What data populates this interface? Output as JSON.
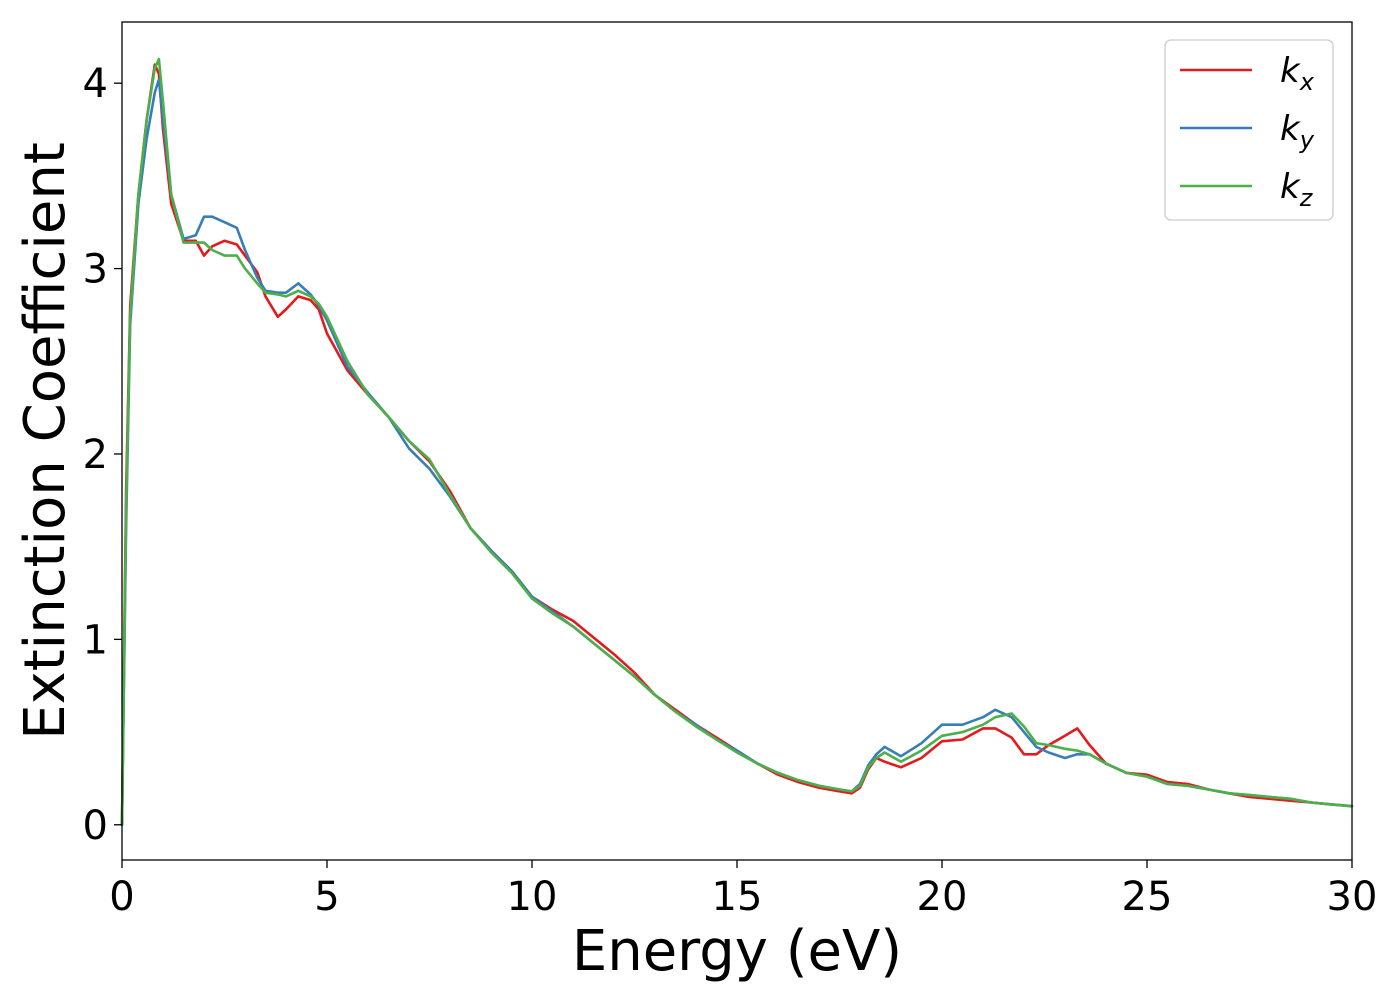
{
  "chart_data": {
    "type": "line",
    "xlabel": "Energy (eV)",
    "ylabel": "Extinction Coefficient",
    "xlim": [
      0,
      30
    ],
    "ylim": [
      -0.19,
      4.33
    ],
    "xticks": [
      0,
      5,
      10,
      15,
      20,
      25,
      30
    ],
    "yticks": [
      0,
      1,
      2,
      3,
      4
    ],
    "grid": false,
    "legend_position": "top-right",
    "series": [
      {
        "name": "k_x",
        "label_base": "k",
        "label_sub": "x",
        "color": "#e41a1c",
        "x": [
          0,
          0.1,
          0.2,
          0.4,
          0.6,
          0.8,
          0.9,
          1.0,
          1.2,
          1.5,
          1.8,
          2.0,
          2.2,
          2.5,
          2.8,
          3.0,
          3.3,
          3.5,
          3.8,
          4.0,
          4.3,
          4.6,
          4.8,
          5.0,
          5.5,
          6.0,
          6.5,
          7.0,
          7.5,
          8.0,
          8.5,
          9.0,
          9.5,
          10.0,
          10.5,
          11.0,
          11.5,
          12.0,
          12.5,
          13.0,
          13.5,
          14.0,
          14.5,
          15.0,
          15.5,
          16.0,
          16.5,
          17.0,
          17.5,
          17.8,
          18.0,
          18.2,
          18.4,
          18.6,
          19.0,
          19.5,
          20.0,
          20.5,
          21.0,
          21.3,
          21.7,
          22.0,
          22.3,
          22.6,
          23.0,
          23.3,
          23.6,
          24.0,
          24.5,
          25.0,
          25.5,
          26.0,
          26.5,
          27.0,
          27.5,
          28.0,
          28.5,
          29.0,
          29.5,
          30.0
        ],
        "y": [
          0,
          1.8,
          2.8,
          3.4,
          3.8,
          4.1,
          4.05,
          3.75,
          3.35,
          3.15,
          3.15,
          3.07,
          3.12,
          3.15,
          3.13,
          3.07,
          2.98,
          2.85,
          2.74,
          2.78,
          2.85,
          2.83,
          2.78,
          2.65,
          2.45,
          2.32,
          2.2,
          2.07,
          1.96,
          1.8,
          1.6,
          1.48,
          1.37,
          1.23,
          1.16,
          1.1,
          1.01,
          0.92,
          0.82,
          0.7,
          0.62,
          0.54,
          0.47,
          0.4,
          0.33,
          0.27,
          0.23,
          0.2,
          0.18,
          0.17,
          0.2,
          0.3,
          0.36,
          0.34,
          0.31,
          0.36,
          0.45,
          0.46,
          0.52,
          0.52,
          0.47,
          0.38,
          0.38,
          0.43,
          0.48,
          0.52,
          0.43,
          0.33,
          0.28,
          0.27,
          0.23,
          0.22,
          0.19,
          0.17,
          0.15,
          0.14,
          0.13,
          0.12,
          0.11,
          0.1
        ]
      },
      {
        "name": "k_y",
        "label_base": "k",
        "label_sub": "y",
        "color": "#377eb8",
        "x": [
          0,
          0.1,
          0.2,
          0.4,
          0.6,
          0.8,
          0.9,
          1.0,
          1.2,
          1.5,
          1.8,
          2.0,
          2.2,
          2.5,
          2.8,
          3.0,
          3.3,
          3.5,
          3.8,
          4.0,
          4.3,
          4.6,
          4.8,
          5.0,
          5.5,
          6.0,
          6.5,
          7.0,
          7.5,
          8.0,
          8.5,
          9.0,
          9.5,
          10.0,
          10.5,
          11.0,
          11.5,
          12.0,
          12.5,
          13.0,
          13.5,
          14.0,
          14.5,
          15.0,
          15.5,
          16.0,
          16.5,
          17.0,
          17.5,
          17.8,
          18.0,
          18.2,
          18.4,
          18.6,
          19.0,
          19.5,
          20.0,
          20.5,
          21.0,
          21.3,
          21.7,
          22.0,
          22.3,
          22.6,
          23.0,
          23.3,
          23.6,
          24.0,
          24.5,
          25.0,
          25.5,
          26.0,
          26.5,
          27.0,
          27.5,
          28.0,
          28.5,
          29.0,
          29.5,
          30.0
        ],
        "y": [
          0,
          1.6,
          2.7,
          3.35,
          3.7,
          3.95,
          4.02,
          3.8,
          3.4,
          3.16,
          3.18,
          3.28,
          3.28,
          3.25,
          3.22,
          3.1,
          2.95,
          2.88,
          2.87,
          2.87,
          2.92,
          2.86,
          2.8,
          2.72,
          2.47,
          2.33,
          2.2,
          2.03,
          1.92,
          1.77,
          1.6,
          1.48,
          1.37,
          1.23,
          1.15,
          1.07,
          0.98,
          0.89,
          0.8,
          0.7,
          0.61,
          0.54,
          0.46,
          0.4,
          0.33,
          0.28,
          0.24,
          0.21,
          0.19,
          0.18,
          0.22,
          0.32,
          0.38,
          0.42,
          0.37,
          0.44,
          0.54,
          0.54,
          0.58,
          0.62,
          0.58,
          0.5,
          0.42,
          0.39,
          0.36,
          0.38,
          0.38,
          0.33,
          0.28,
          0.26,
          0.22,
          0.21,
          0.19,
          0.17,
          0.16,
          0.15,
          0.14,
          0.12,
          0.11,
          0.1
        ]
      },
      {
        "name": "k_z",
        "label_base": "k",
        "label_sub": "z",
        "color": "#4daf4a",
        "x": [
          0,
          0.1,
          0.2,
          0.4,
          0.6,
          0.8,
          0.9,
          1.0,
          1.2,
          1.5,
          1.8,
          2.0,
          2.2,
          2.5,
          2.8,
          3.0,
          3.3,
          3.5,
          3.8,
          4.0,
          4.3,
          4.6,
          4.8,
          5.0,
          5.5,
          6.0,
          6.5,
          7.0,
          7.5,
          8.0,
          8.5,
          9.0,
          9.5,
          10.0,
          10.5,
          11.0,
          11.5,
          12.0,
          12.5,
          13.0,
          13.5,
          14.0,
          14.5,
          15.0,
          15.5,
          16.0,
          16.5,
          17.0,
          17.5,
          17.8,
          18.0,
          18.2,
          18.4,
          18.6,
          19.0,
          19.5,
          20.0,
          20.5,
          21.0,
          21.3,
          21.7,
          22.0,
          22.3,
          22.6,
          23.0,
          23.3,
          23.6,
          24.0,
          24.5,
          25.0,
          25.5,
          26.0,
          26.5,
          27.0,
          27.5,
          28.0,
          28.5,
          29.0,
          29.5,
          30.0
        ],
        "y": [
          0,
          1.7,
          2.75,
          3.4,
          3.8,
          4.08,
          4.13,
          3.9,
          3.4,
          3.14,
          3.14,
          3.14,
          3.1,
          3.07,
          3.07,
          3.0,
          2.92,
          2.87,
          2.86,
          2.85,
          2.88,
          2.85,
          2.81,
          2.74,
          2.5,
          2.32,
          2.2,
          2.07,
          1.97,
          1.78,
          1.6,
          1.47,
          1.36,
          1.22,
          1.14,
          1.07,
          0.98,
          0.89,
          0.8,
          0.7,
          0.61,
          0.53,
          0.46,
          0.39,
          0.33,
          0.28,
          0.24,
          0.21,
          0.19,
          0.18,
          0.21,
          0.31,
          0.36,
          0.39,
          0.34,
          0.4,
          0.48,
          0.5,
          0.54,
          0.58,
          0.6,
          0.53,
          0.44,
          0.43,
          0.41,
          0.4,
          0.38,
          0.33,
          0.28,
          0.26,
          0.22,
          0.21,
          0.19,
          0.17,
          0.16,
          0.15,
          0.14,
          0.12,
          0.11,
          0.1
        ]
      }
    ]
  }
}
